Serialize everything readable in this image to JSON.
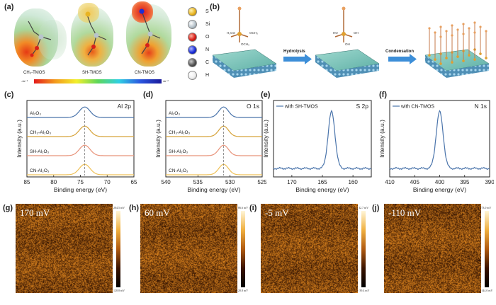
{
  "panels": {
    "a": "(a)",
    "b": "(b)",
    "c": "(c)",
    "d": "(d)",
    "e": "(e)",
    "f": "(f)",
    "g": "(g)",
    "h": "(h)",
    "i": "(i)",
    "j": "(j)"
  },
  "a": {
    "molecules": [
      "CH₃-TMOS",
      "SH-TMOS",
      "CN-TMOS"
    ],
    "scale_min": "-4e⁻²",
    "scale_max": "4e⁻²",
    "legend": [
      {
        "symbol": "S",
        "color": "#e8b422"
      },
      {
        "symbol": "Si",
        "color": "#b8c4cc"
      },
      {
        "symbol": "O",
        "color": "#d8201a"
      },
      {
        "symbol": "N",
        "color": "#1a2ed8"
      },
      {
        "symbol": "C",
        "color": "#555555"
      },
      {
        "symbol": "H",
        "color": "#f4f4f4"
      }
    ]
  },
  "b": {
    "arrow1": "Hydrolysis",
    "arrow2": "Condensation",
    "mol_left": [
      "H₃CO",
      "OCH₃",
      "OCH₃"
    ],
    "mol_mid": [
      "HO",
      "OH",
      "OH"
    ]
  },
  "chart_data": [
    {
      "id": "c",
      "type": "line",
      "title": "Al 2p",
      "xlabel": "Binding energy (eV)",
      "ylabel": "Intensity (a.u.)",
      "xlim": [
        85,
        65
      ],
      "xticks": [
        "85",
        "80",
        "75",
        "70",
        "65"
      ],
      "peak": 74.2,
      "series": [
        {
          "name": "Al₂O₃",
          "color": "#4a74ab"
        },
        {
          "name": "CH₃-Al₂O₃",
          "color": "#d6a33a"
        },
        {
          "name": "SH-Al₂O₃",
          "color": "#e8937a"
        },
        {
          "name": "CN-Al₂O₃",
          "color": "#efc158"
        }
      ]
    },
    {
      "id": "d",
      "type": "line",
      "title": "O 1s",
      "xlabel": "Binding energy (eV)",
      "ylabel": "Intensity (a.u.)",
      "xlim": [
        540,
        525
      ],
      "xticks": [
        "540",
        "535",
        "530",
        "525"
      ],
      "peak": 531,
      "series": [
        {
          "name": "Al₂O₃",
          "color": "#4a74ab"
        },
        {
          "name": "CH₃-Al₂O₃",
          "color": "#d6a33a"
        },
        {
          "name": "SH-Al₂O₃",
          "color": "#e8937a"
        },
        {
          "name": "CN-Al₂O₃",
          "color": "#efc158"
        }
      ]
    },
    {
      "id": "e",
      "type": "line",
      "title": "S 2p",
      "legend": "with SH-TMOS",
      "xlabel": "Binding energy (eV)",
      "ylabel": "Intensity (a.u.)",
      "xlim": [
        173,
        157
      ],
      "xticks": [
        "170",
        "165",
        "160"
      ],
      "peak": 163.5,
      "series": [
        {
          "name": "with SH-TMOS",
          "color": "#4a74ab"
        }
      ]
    },
    {
      "id": "f",
      "type": "line",
      "title": "N 1s",
      "legend": "with CN-TMOS",
      "xlabel": "Binding energy (eV)",
      "ylabel": "Intensity (a.u.)",
      "xlim": [
        410,
        390
      ],
      "xticks": [
        "410",
        "405",
        "400",
        "395",
        "390"
      ],
      "peak": 400,
      "series": [
        {
          "name": "with CN-TMOS",
          "color": "#4a74ab"
        }
      ]
    }
  ],
  "afm": [
    {
      "label": "170 mV",
      "max": "204.5 mV",
      "min": "128.8 mV"
    },
    {
      "label": "60 mV",
      "max": "86.6 mV",
      "min": "20.8 mV"
    },
    {
      "label": "-5 mV",
      "max": "32.7 mV",
      "min": "-39.4 mV"
    },
    {
      "label": "-110 mV",
      "max": "-73.0 mV",
      "min": "-144.0 mV"
    }
  ]
}
